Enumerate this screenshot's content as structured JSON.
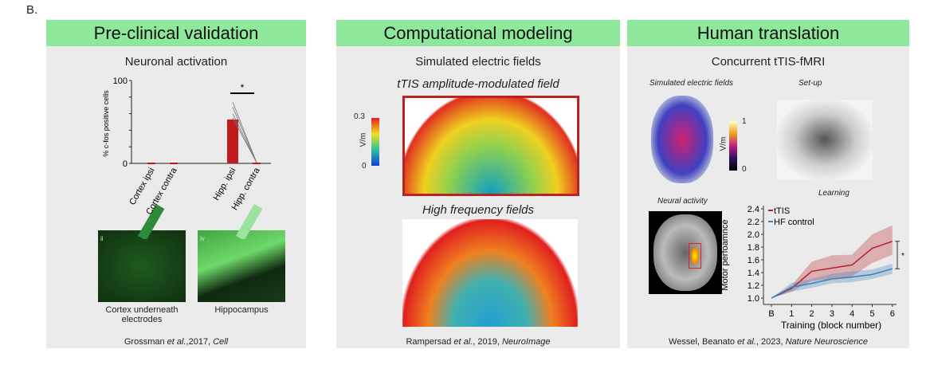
{
  "figure_label": "B.",
  "panels": [
    {
      "title": "Pre-clinical validation",
      "subtitle": "Neuronal activation",
      "images": [
        {
          "tag": "ii",
          "caption": "Cortex underneath electrodes"
        },
        {
          "tag": "iv",
          "caption": "Hippocampus"
        }
      ],
      "citation": {
        "authors": "Grossman ",
        "etal": "et al.",
        "year": ",2017, ",
        "journal": "Cell"
      }
    },
    {
      "title": "Computational modeling",
      "subtitle": "Simulated electric fields",
      "field1": "tTIS amplitude-modulated field",
      "field2": "High frequency fields",
      "colorbar": {
        "max": "0.3",
        "min": "0",
        "unit": "V/m"
      },
      "citation": {
        "authors": "Rampersad ",
        "etal": "et al.",
        "year": ", 2019, ",
        "journal": "NeuroImage"
      }
    },
    {
      "title": "Human translation",
      "subtitle": "Concurrent tTIS-fMRI",
      "sim_label": "Simulated electric fields",
      "setup_label": "Set-up",
      "neural_label": "Neural activity",
      "learning_label": "Learning",
      "colorbar": {
        "max": "1",
        "min": "0",
        "unit": "V/m"
      },
      "citation": {
        "authors": "Wessel, Beanato ",
        "etal": "et al.",
        "year": ", 2023, ",
        "journal": "Nature Neuroscience"
      }
    }
  ],
  "chart_data": [
    {
      "type": "bar",
      "ylabel": "% c-fos positive cells",
      "categories": [
        "Cortex ipsi",
        "Cortex contra",
        "Hipp. ipsi",
        "Hipp. contra"
      ],
      "values": [
        0,
        0,
        53,
        1
      ],
      "ylim": [
        0,
        100
      ],
      "yticks": [
        "100",
        "0"
      ],
      "significance": "*",
      "highlight_colors": [
        "#2e8b3a",
        "#9be39f"
      ],
      "bar_color": "#c0191e"
    },
    {
      "type": "line",
      "xlabel": "Training (block number)",
      "ylabel": "Motor perfoamnce",
      "categories": [
        "B",
        "1",
        "2",
        "3",
        "4",
        "5",
        "6"
      ],
      "ylim": [
        1.0,
        2.4
      ],
      "yticks": [
        "1.0",
        "1.2",
        "1.4",
        "1.6",
        "1.8",
        "2.0",
        "2.2",
        "2.4"
      ],
      "significance": "*",
      "legend": "top-left",
      "series": [
        {
          "name": "tTIS",
          "color": "#b5202e",
          "values": [
            1.0,
            1.15,
            1.42,
            1.47,
            1.52,
            1.78,
            1.89
          ],
          "lower": [
            1.0,
            1.1,
            1.27,
            1.3,
            1.34,
            1.55,
            1.68
          ],
          "upper": [
            1.0,
            1.2,
            1.57,
            1.67,
            1.68,
            2.0,
            2.14
          ]
        },
        {
          "name": "HF control",
          "color": "#3f7fb8",
          "values": [
            1.0,
            1.17,
            1.23,
            1.3,
            1.33,
            1.37,
            1.46
          ],
          "lower": [
            1.0,
            1.1,
            1.16,
            1.23,
            1.25,
            1.3,
            1.38
          ],
          "upper": [
            1.0,
            1.24,
            1.3,
            1.38,
            1.42,
            1.45,
            1.54
          ]
        }
      ]
    }
  ]
}
